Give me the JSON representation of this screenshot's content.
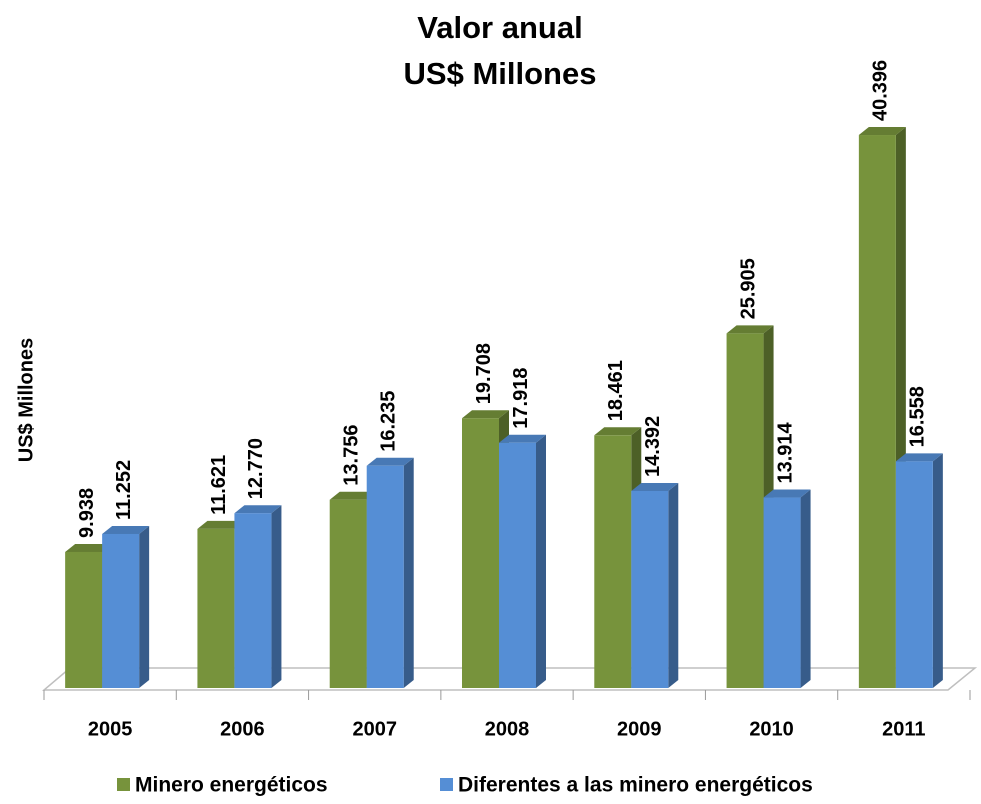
{
  "chart_data": {
    "type": "bar3d",
    "title": "Valor anual",
    "subtitle": "US$ Millones",
    "y_label": "US$ Millones",
    "categories": [
      "2005",
      "2006",
      "2007",
      "2008",
      "2009",
      "2010",
      "2011"
    ],
    "series": [
      {
        "name": "Minero energéticos",
        "color": "#77933c",
        "values": [
          9938,
          11621,
          13756,
          19708,
          18461,
          25905,
          40396
        ],
        "value_labels": [
          "9.938",
          "11.621",
          "13.756",
          "19.708",
          "18.461",
          "25.905",
          "40.396"
        ]
      },
      {
        "name": "Diferentes  a las minero energéticos",
        "color": "#558ed5",
        "values": [
          11252,
          12770,
          16235,
          17918,
          14392,
          13914,
          16558
        ],
        "value_labels": [
          "11.252",
          "12.770",
          "16.235",
          "17.918",
          "14.392",
          "13.914",
          "16.558"
        ]
      }
    ],
    "ylim": [
      0,
      45000
    ],
    "legend": "bottom"
  }
}
